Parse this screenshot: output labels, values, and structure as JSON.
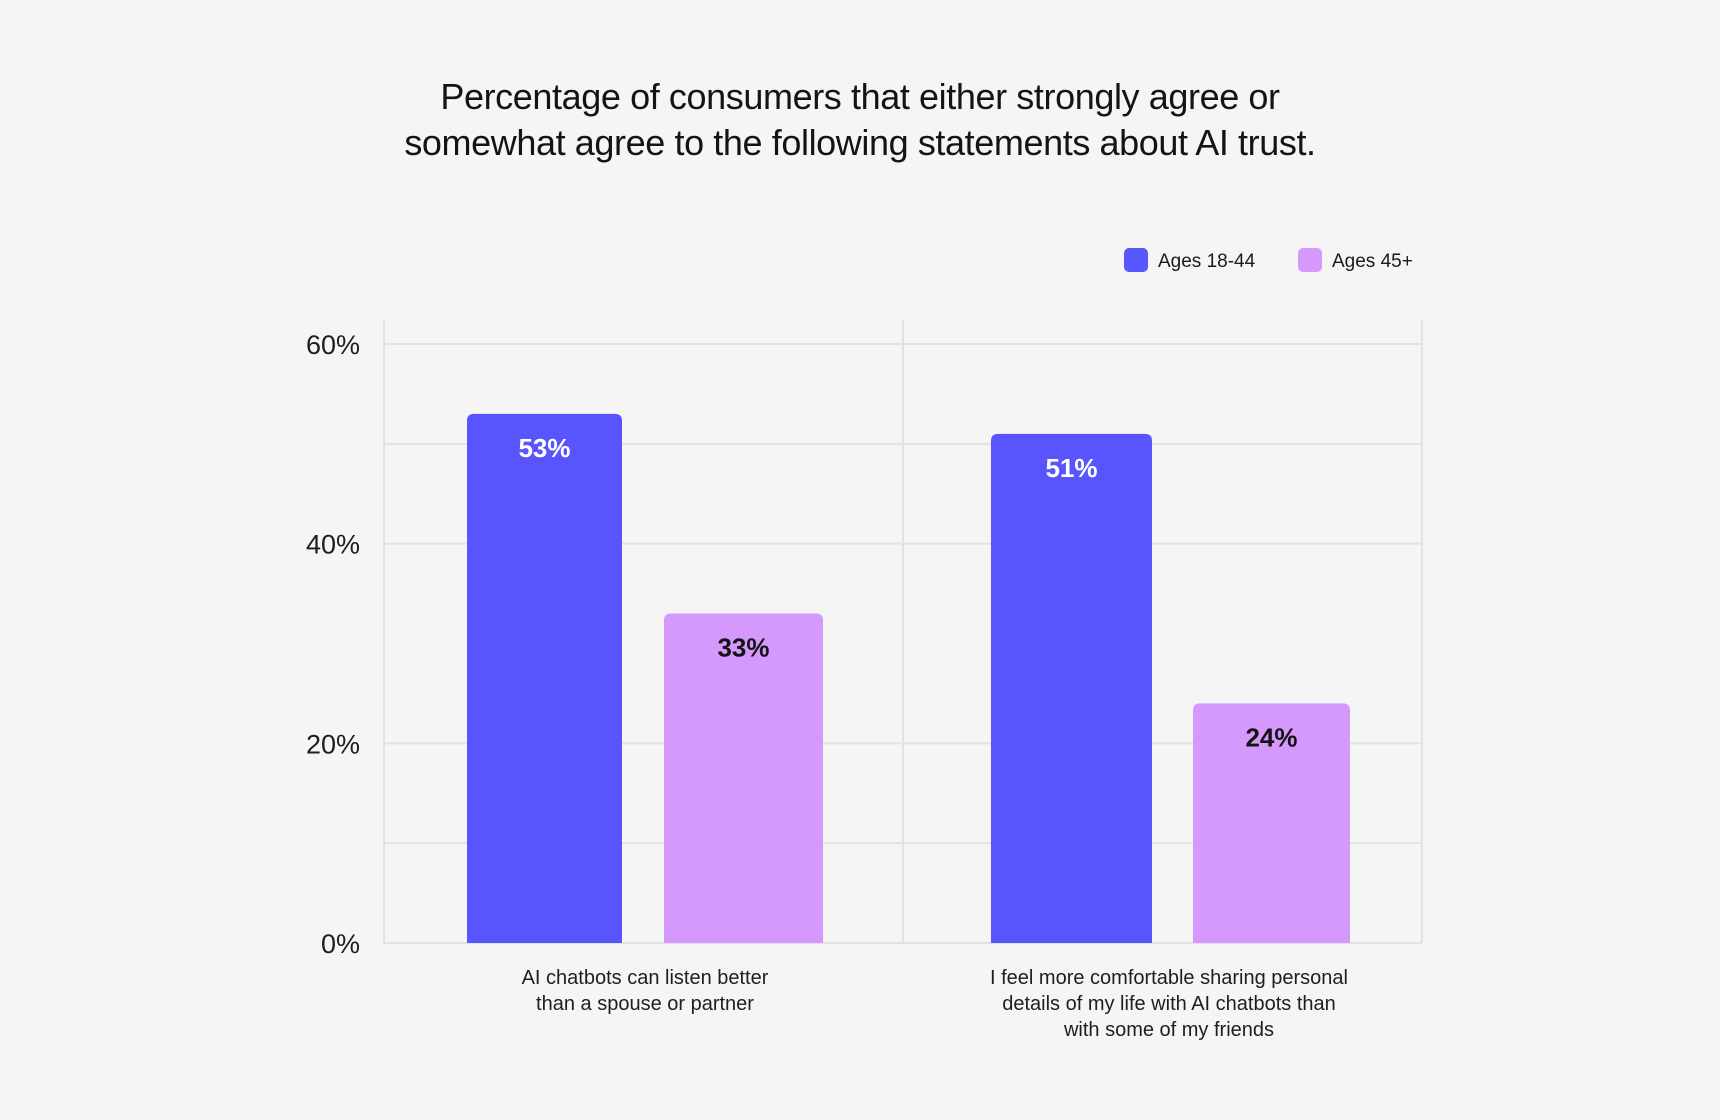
{
  "chart_data": {
    "type": "bar",
    "title_lines": [
      "Percentage of consumers that either strongly agree or",
      "somewhat agree to the following statements about AI trust."
    ],
    "categories": [
      [
        "AI chatbots can listen better",
        "than a spouse or partner"
      ],
      [
        "I feel more comfortable sharing personal",
        "details of my life with AI chatbots than",
        "with some of my friends"
      ]
    ],
    "series": [
      {
        "name": "Ages 18-44",
        "color": "#5855ff",
        "label_color": "#ffffff",
        "values": [
          53,
          51
        ],
        "labels": [
          "53%",
          "51%"
        ]
      },
      {
        "name": "Ages 45+",
        "color": "#d598fd",
        "label_color": "#141414",
        "values": [
          33,
          24
        ],
        "labels": [
          "33%",
          "24%"
        ]
      }
    ],
    "ylim": [
      0,
      60
    ],
    "y_ticks": [
      0,
      20,
      40,
      60
    ],
    "y_tick_labels": [
      "0%",
      "20%",
      "40%",
      "60%"
    ],
    "grid": true,
    "legend_position": "top-right",
    "xlabel": "",
    "ylabel": ""
  }
}
